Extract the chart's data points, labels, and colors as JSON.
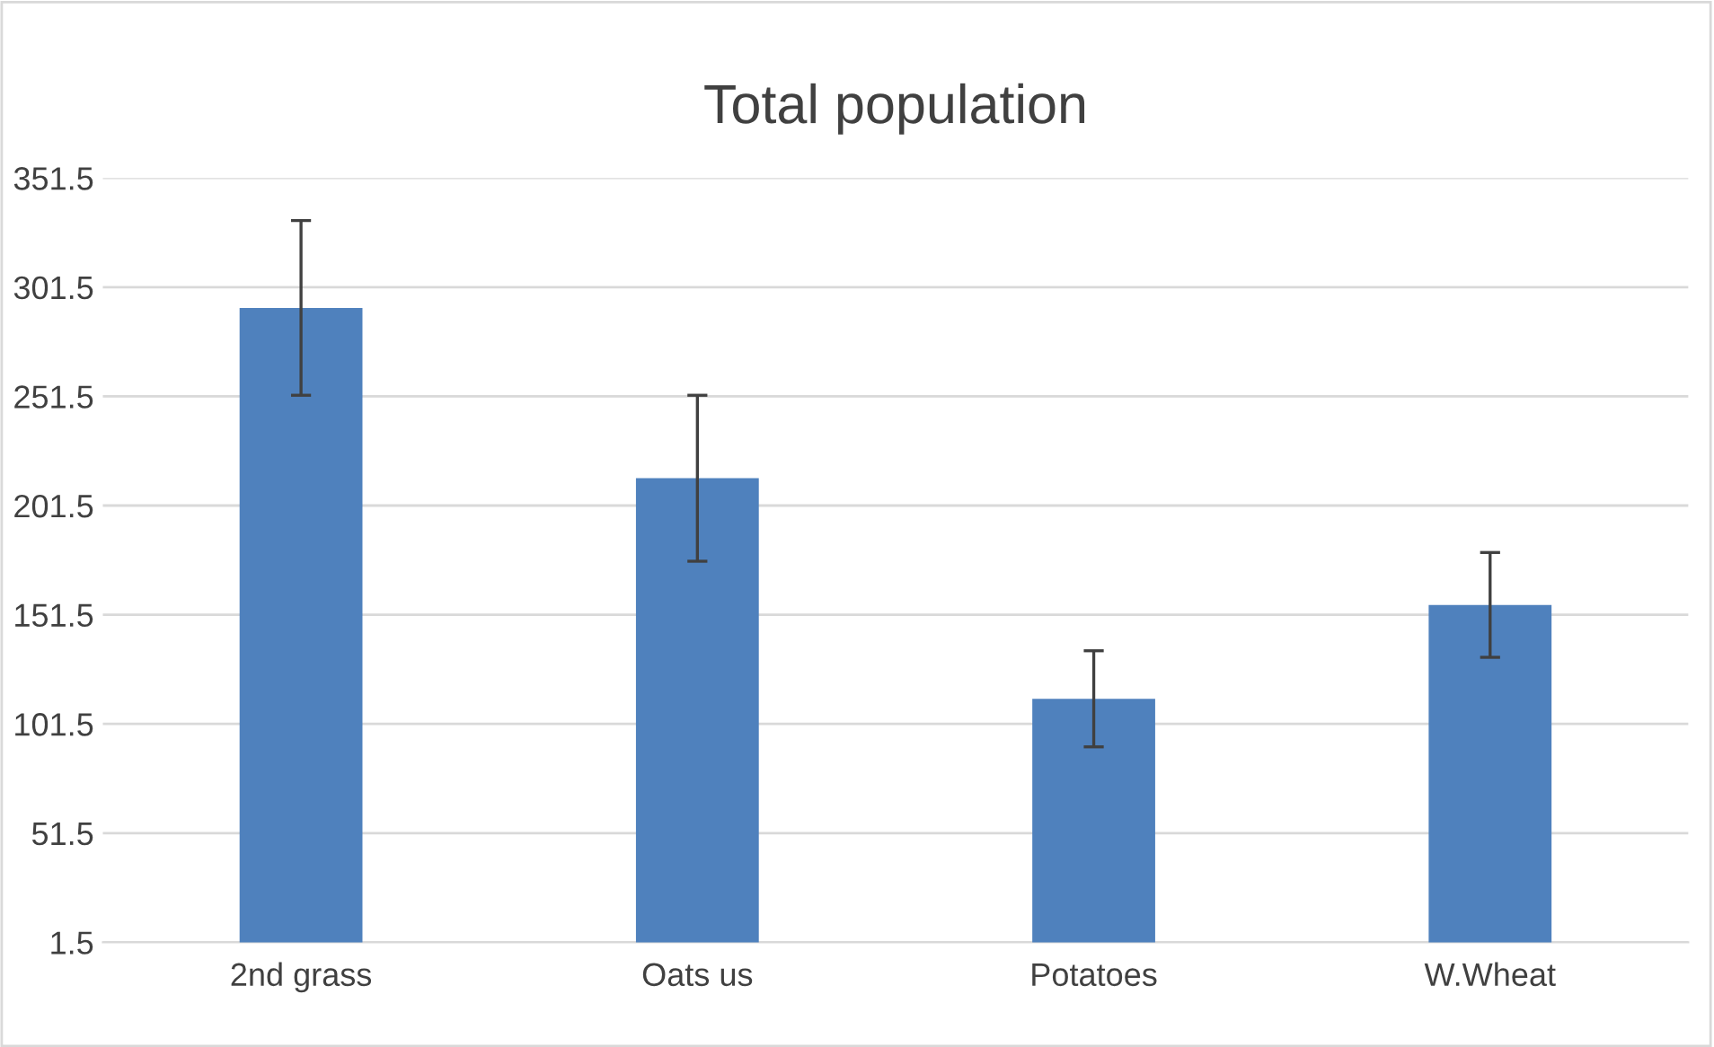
{
  "chart_data": {
    "type": "bar",
    "title": "Total population",
    "categories": [
      "2nd grass",
      "Oats us",
      "Potatoes",
      "W.Wheat"
    ],
    "values": [
      292,
      214,
      113,
      156
    ],
    "errors": [
      40,
      38,
      22,
      24
    ],
    "color": "#4f81bd",
    "ylim": [
      1.5,
      351.5
    ],
    "yticks": [
      1.5,
      51.5,
      101.5,
      151.5,
      201.5,
      251.5,
      301.5,
      351.5
    ],
    "grid": "y",
    "legend": false
  }
}
